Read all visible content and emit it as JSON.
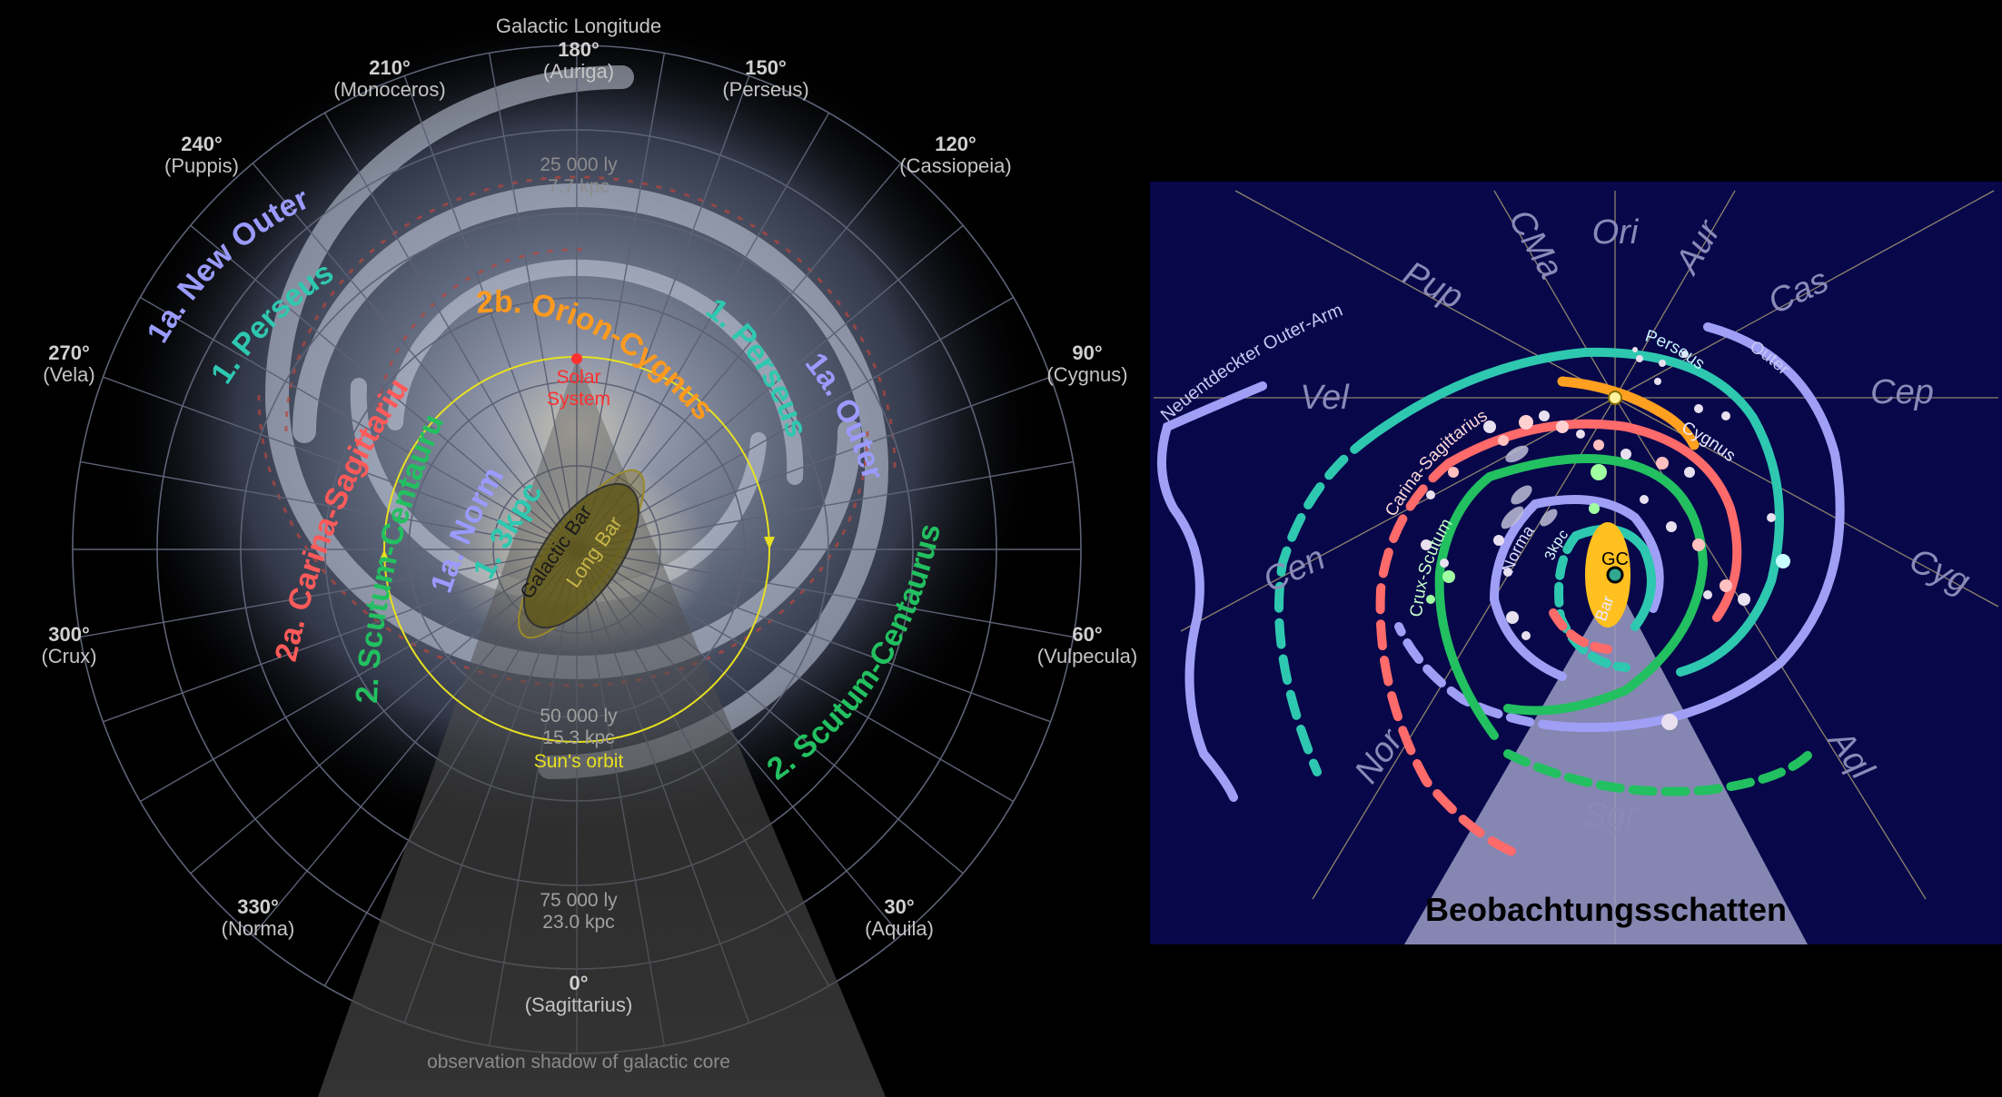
{
  "left_map": {
    "title": "Galactic Longitude",
    "longitudes": [
      {
        "deg": "180°",
        "name": "(Auriga)"
      },
      {
        "deg": "210°",
        "name": "(Monoceros)"
      },
      {
        "deg": "150°",
        "name": "(Perseus)"
      },
      {
        "deg": "240°",
        "name": "(Puppis)"
      },
      {
        "deg": "120°",
        "name": "(Cassiopeia)"
      },
      {
        "deg": "270°",
        "name": "(Vela)"
      },
      {
        "deg": "90°",
        "name": "(Cygnus)"
      },
      {
        "deg": "300°",
        "name": "(Crux)"
      },
      {
        "deg": "60°",
        "name": "(Vulpecula)"
      },
      {
        "deg": "330°",
        "name": "(Norma)"
      },
      {
        "deg": "30°",
        "name": "(Aquila)"
      },
      {
        "deg": "0°",
        "name": "(Sagittarius)"
      }
    ],
    "distances": [
      {
        "ly": "25 000 ly",
        "kpc": "7.7 kpc"
      },
      {
        "ly": "50 000 ly",
        "kpc": "15.3 kpc"
      },
      {
        "ly": "75 000 ly",
        "kpc": "23.0 kpc"
      }
    ],
    "arms": {
      "new_outer": "1a. New Outer",
      "perseus_left": "1. Perseus",
      "orion_cygnus": "2b. Orion-Cygnus",
      "perseus_right": "1. Perseus",
      "outer": "1a. Outer",
      "carina_sagittarius": "2a. Carina-Sagittarius",
      "scutum_centaurus_inner": "2. Scutum-Centaurus",
      "norma": "1a. Norma",
      "three_kpc": "1. 3kpc",
      "scutum_centaurus_outer": "2. Scutum-Centaurus"
    },
    "galactic_bar": "Galactic Bar",
    "long_bar": "Long Bar",
    "solar_system": [
      "Solar",
      "System"
    ],
    "suns_orbit": "Sun's orbit",
    "shadow_label": "observation shadow of galactic core",
    "colors": {
      "new_outer": "#9b9bff",
      "perseus": "#2ec8b0",
      "orion": "#ff9a1e",
      "carina": "#ff5a5a",
      "scutum": "#22c060",
      "orbit": "#e8e020",
      "sun": "#ff3030"
    }
  },
  "right_map": {
    "constellations": [
      "Ori",
      "CMa",
      "Aur",
      "Pup",
      "Cas",
      "Vel",
      "Cep",
      "Cen",
      "Cyg",
      "Nor",
      "Aql",
      "Sgr"
    ],
    "arm_labels": {
      "new_outer_arm": "Neuentdeckter Outer-Arm",
      "perseus": "Perseus",
      "outer": "Outer",
      "cygnus": "Cygnus",
      "carina_sagittarius": "Carina-Sagittarius",
      "crux_scutum": "Crux-Scutum",
      "norma": "Norma",
      "three_kpc": "3kpc",
      "bar": "Bar"
    },
    "gc_label": "GC",
    "shadow_label": "Beobachtungsschatten",
    "colors": {
      "background": "#07074a",
      "outer": "#9f9ff6",
      "perseus": "#2ec8b0",
      "orion": "#ffa020",
      "carina": "#ff6a6a",
      "crux": "#22c060",
      "bar": "#ffc020",
      "shadow": "#9c9cc4"
    }
  }
}
